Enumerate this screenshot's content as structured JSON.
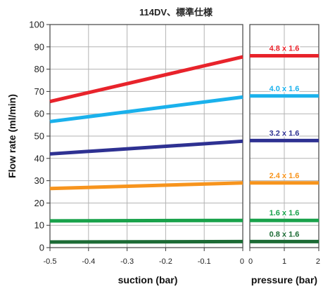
{
  "chart_data": {
    "type": "line",
    "title": "114DV、標準仕様",
    "ylabel": "Flow rate (ml/min)",
    "ylim": [
      0,
      100
    ],
    "yticks": [
      "0",
      "10",
      "20",
      "30",
      "40",
      "50",
      "60",
      "70",
      "80",
      "90",
      "100"
    ],
    "grid": true,
    "panels": [
      {
        "xlabel": "suction (bar)",
        "xlim": [
          -0.5,
          0
        ],
        "xticks": [
          "-0.5",
          "-0.4",
          "-0.3",
          "-0.2",
          "-0.1",
          "0"
        ]
      },
      {
        "xlabel": "pressure (bar)",
        "xlim": [
          0,
          2
        ],
        "xticks": [
          "0",
          "1",
          "2"
        ]
      }
    ],
    "series": [
      {
        "name": "4.8 x 1.6",
        "color": "#e8232b",
        "suction": [
          [
            -0.5,
            65.5
          ],
          [
            0,
            85.5
          ]
        ],
        "pressure": [
          [
            0,
            86
          ],
          [
            2,
            86
          ]
        ]
      },
      {
        "name": "4.0 x 1.6",
        "color": "#1ab1ec",
        "suction": [
          [
            -0.5,
            56.5
          ],
          [
            0,
            67.5
          ]
        ],
        "pressure": [
          [
            0,
            68
          ],
          [
            2,
            68
          ]
        ]
      },
      {
        "name": "3.2 x 1.6",
        "color": "#2e3192",
        "suction": [
          [
            -0.5,
            42
          ],
          [
            0,
            47.7
          ]
        ],
        "pressure": [
          [
            0,
            48
          ],
          [
            2,
            48
          ]
        ]
      },
      {
        "name": "2.4 x 1.6",
        "color": "#f7941d",
        "suction": [
          [
            -0.5,
            26.5
          ],
          [
            0,
            29
          ]
        ],
        "pressure": [
          [
            0,
            29
          ],
          [
            2,
            29
          ]
        ]
      },
      {
        "name": "1.6 x 1.6",
        "color": "#19a24b",
        "suction": [
          [
            -0.5,
            12
          ],
          [
            0,
            12.2
          ]
        ],
        "pressure": [
          [
            0,
            12.2
          ],
          [
            2,
            12.2
          ]
        ]
      },
      {
        "name": "0.8 x 1.6",
        "color": "#1c6b35",
        "suction": [
          [
            -0.5,
            2.5
          ],
          [
            0,
            2.7
          ]
        ],
        "pressure": [
          [
            0,
            2.7
          ],
          [
            2,
            2.7
          ]
        ]
      }
    ]
  }
}
